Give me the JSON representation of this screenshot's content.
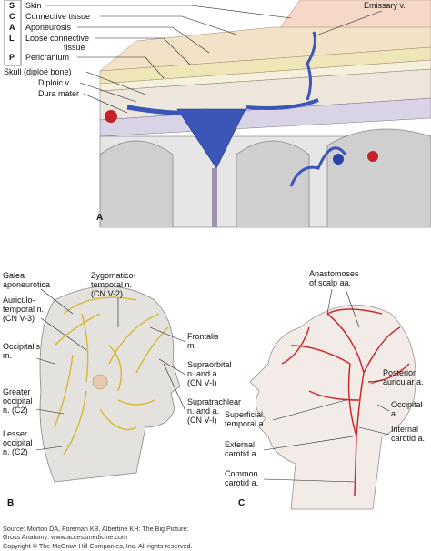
{
  "panel_a": {
    "scalp_letters": [
      "S",
      "C",
      "A",
      "L",
      "P"
    ],
    "layers": [
      [
        "Skin"
      ],
      [
        "Connective tissue"
      ],
      [
        "Aponeurosis"
      ],
      [
        "Loose connective",
        "tissue"
      ],
      [
        "Pericranium"
      ]
    ],
    "skull": "Skull (diploë bone)",
    "diploic": "Diploic v.",
    "dura": "Dura mater",
    "emissary": "Emissary v.",
    "label": "A"
  },
  "panel_b": {
    "galea": [
      "Galea",
      "aponeurotica"
    ],
    "zygomatico": [
      "Zygomatico-",
      "temporal n.",
      "(CN V-2)"
    ],
    "auriculo": [
      "Auriculo-",
      "temporal n.",
      "(CN V-3)"
    ],
    "frontalis": [
      "Frontalis",
      "m."
    ],
    "occipitalis": [
      "Occipitalis",
      "m."
    ],
    "supraorbital": [
      "Supraorbital",
      "n. and a.",
      "(CN V-I)"
    ],
    "supratrachlear": [
      "Supratrachlear",
      "n. and a.",
      "(CN V-I)"
    ],
    "greater": [
      "Greater",
      "occipital",
      "n. (C2)"
    ],
    "lesser": [
      "Lesser",
      "occipital",
      "n. (C2)"
    ],
    "label": "B"
  },
  "panel_c": {
    "anastomoses": [
      "Anastomoses",
      "of scalp aa."
    ],
    "posterior": [
      "Posterior",
      "auricular a."
    ],
    "occipital": [
      "Occipital",
      "a."
    ],
    "internal": [
      "Internal",
      "carotid a."
    ],
    "superficial": [
      "Superficial",
      "temporal a."
    ],
    "external": [
      "External",
      "carotid a."
    ],
    "common": [
      "Common",
      "carotid a."
    ],
    "label": "C"
  },
  "footer": {
    "source": [
      "Source: Morton DA, Foreman KB, Albertine KH: The Big Picture:",
      "Gross Anatomy: www.accessmedicine.com"
    ],
    "copyright": "Copyright © The McGraw-Hill Companies, Inc. All rights reserved."
  }
}
